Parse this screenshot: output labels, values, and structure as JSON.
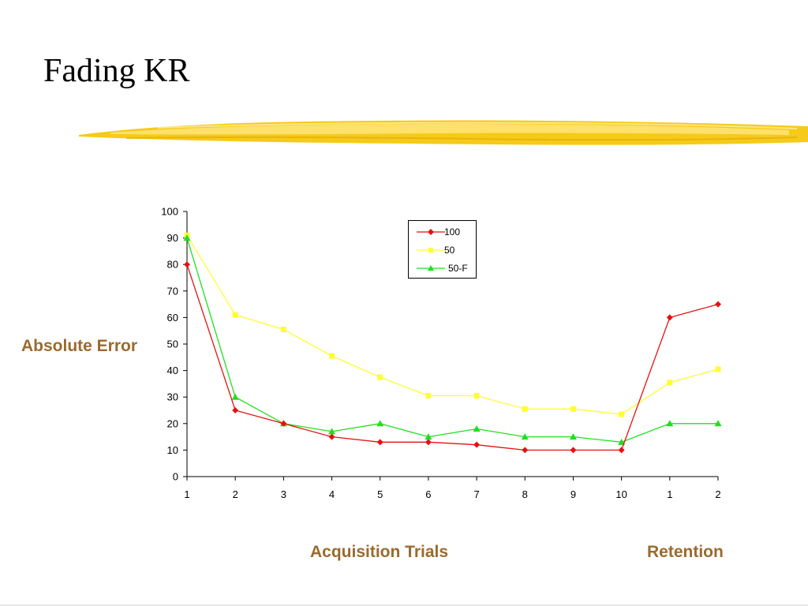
{
  "slide": {
    "title": "Fading KR"
  },
  "colors": {
    "brush": "#f5c400",
    "label": "#9a6a2f",
    "series_100": "#e31212",
    "series_50": "#ffff33",
    "series_50F": "#22dd22"
  },
  "chart_data": {
    "type": "line",
    "categories": [
      "1",
      "2",
      "3",
      "4",
      "5",
      "6",
      "7",
      "8",
      "9",
      "10",
      "1",
      "2"
    ],
    "series": [
      {
        "name": "100",
        "marker": "diamond",
        "values": [
          80,
          25,
          20,
          15,
          13,
          13,
          12,
          10,
          10,
          10,
          60,
          65
        ]
      },
      {
        "name": "50",
        "marker": "square",
        "values": [
          91,
          61,
          55.5,
          45.5,
          37.5,
          30.5,
          30.5,
          25.5,
          25.5,
          23.5,
          35.5,
          40.5
        ]
      },
      {
        "name": "50-F",
        "marker": "triangle",
        "values": [
          90,
          30,
          20,
          17,
          20,
          15,
          18,
          15,
          15,
          13,
          20,
          20
        ]
      }
    ],
    "ylim": [
      0,
      100
    ],
    "yticks": [
      "0",
      "10",
      "20",
      "30",
      "40",
      "50",
      "60",
      "70",
      "80",
      "90",
      "100"
    ],
    "ylabel": "Absolute Error",
    "xlabel": "Acquisition Trials",
    "xlabel_2": "Retention",
    "legend_position": "top-center",
    "grid": false
  }
}
